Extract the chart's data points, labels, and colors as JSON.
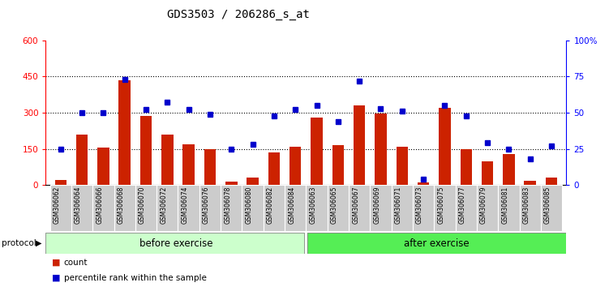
{
  "title": "GDS3503 / 206286_s_at",
  "categories": [
    "GSM306062",
    "GSM306064",
    "GSM306066",
    "GSM306068",
    "GSM306070",
    "GSM306072",
    "GSM306074",
    "GSM306076",
    "GSM306078",
    "GSM306080",
    "GSM306082",
    "GSM306084",
    "GSM306063",
    "GSM306065",
    "GSM306067",
    "GSM306069",
    "GSM306071",
    "GSM306073",
    "GSM306075",
    "GSM306077",
    "GSM306079",
    "GSM306081",
    "GSM306083",
    "GSM306085"
  ],
  "count_values": [
    20,
    210,
    155,
    435,
    285,
    210,
    170,
    148,
    15,
    30,
    135,
    158,
    280,
    165,
    330,
    295,
    158,
    10,
    320,
    150,
    100,
    130,
    18,
    30
  ],
  "percentile_values": [
    25,
    50,
    50,
    73,
    52,
    57,
    52,
    49,
    25,
    28,
    48,
    52,
    55,
    44,
    72,
    53,
    51,
    4,
    55,
    48,
    29,
    25,
    18,
    27
  ],
  "bar_color": "#cc2200",
  "dot_color": "#0000cc",
  "group1_label": "before exercise",
  "group2_label": "after exercise",
  "group1_count": 12,
  "group2_count": 12,
  "group1_bg": "#ccffcc",
  "group2_bg": "#55ee55",
  "protocol_label": "protocol",
  "legend_count": "count",
  "legend_percentile": "percentile rank within the sample",
  "ylim_left": [
    0,
    600
  ],
  "ylim_right": [
    0,
    100
  ],
  "yticks_left": [
    0,
    150,
    300,
    450,
    600
  ],
  "yticks_right": [
    0,
    25,
    50,
    75,
    100
  ],
  "grid_values": [
    150,
    300,
    450
  ],
  "title_fontsize": 10,
  "bar_width": 0.55
}
